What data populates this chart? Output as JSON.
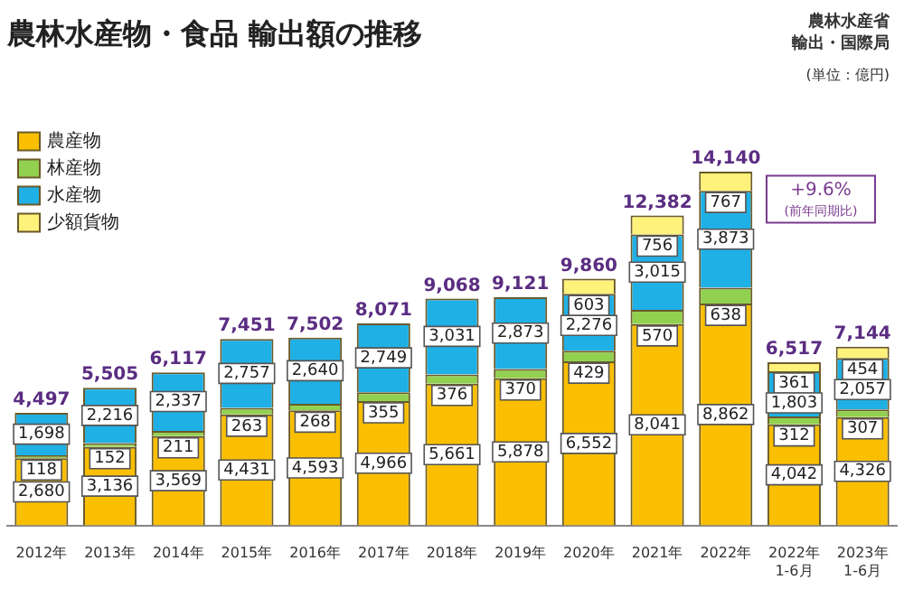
{
  "chart_data": {
    "type": "bar",
    "stacked": true,
    "title": "農林水産物・食品 輸出額の推移",
    "categories": [
      "2012年",
      "2013年",
      "2014年",
      "2015年",
      "2016年",
      "2017年",
      "2018年",
      "2019年",
      "2020年",
      "2021年",
      "2022年",
      "2022年\n1-6月",
      "2023年\n1-6月"
    ],
    "series": [
      {
        "name": "農産物",
        "color": "#f9bf00",
        "values": [
          2680,
          3136,
          3569,
          4431,
          4593,
          4966,
          5661,
          5878,
          6552,
          8041,
          8862,
          4042,
          4326
        ],
        "value_labels": [
          "2,680",
          "3,136",
          "3,569",
          "4,431",
          "4,593",
          "4,966",
          "5,661",
          "5,878",
          "6,552",
          "8,041",
          "8,862",
          "4,042",
          "4,326"
        ]
      },
      {
        "name": "林産物",
        "color": "#92d050",
        "values": [
          118,
          152,
          211,
          263,
          268,
          355,
          376,
          370,
          429,
          570,
          638,
          312,
          307
        ],
        "value_labels": [
          "118",
          "152",
          "211",
          "263",
          "268",
          "355",
          "376",
          "370",
          "429",
          "570",
          "638",
          "312",
          "307"
        ]
      },
      {
        "name": "水産物",
        "color": "#1fb0e6",
        "values": [
          1698,
          2216,
          2337,
          2757,
          2640,
          2749,
          3031,
          2873,
          2276,
          3015,
          3873,
          1803,
          2057
        ],
        "value_labels": [
          "1,698",
          "2,216",
          "2,337",
          "2,757",
          "2,640",
          "2,749",
          "3,031",
          "2,873",
          "2,276",
          "3,015",
          "3,873",
          "1,803",
          "2,057"
        ]
      },
      {
        "name": "少額貨物",
        "color": "#fff27a",
        "values": [
          null,
          null,
          null,
          null,
          null,
          null,
          null,
          null,
          603,
          756,
          767,
          361,
          454
        ],
        "value_labels": [
          null,
          null,
          null,
          null,
          null,
          null,
          null,
          null,
          "603",
          "756",
          "767",
          "361",
          "454"
        ]
      }
    ],
    "totals": [
      "4,497",
      "5,505",
      "6,117",
      "7,451",
      "7,502",
      "8,071",
      "9,068",
      "9,121",
      "9,860",
      "12,382",
      "14,140",
      "6,517",
      "7,144"
    ],
    "tick_labels": "x",
    "legend": "top left",
    "grid": false,
    "annotations": [
      "農林水産省",
      "輸出・国際局",
      "(単位：億円)",
      "+9.6%",
      "(前年同期比)"
    ]
  }
}
